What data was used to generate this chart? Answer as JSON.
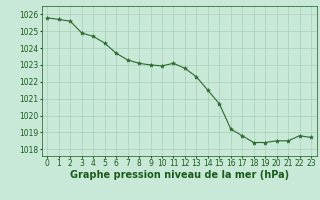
{
  "x": [
    0,
    1,
    2,
    3,
    4,
    5,
    6,
    7,
    8,
    9,
    10,
    11,
    12,
    13,
    14,
    15,
    16,
    17,
    18,
    19,
    20,
    21,
    22,
    23
  ],
  "y": [
    1025.8,
    1025.7,
    1025.6,
    1024.9,
    1024.7,
    1024.3,
    1023.7,
    1023.3,
    1023.1,
    1023.0,
    1022.95,
    1023.1,
    1022.8,
    1022.3,
    1021.5,
    1020.7,
    1019.2,
    1018.8,
    1018.4,
    1018.4,
    1018.5,
    1018.5,
    1018.8,
    1018.7
  ],
  "line_color": "#2d6a2d",
  "marker": "*",
  "marker_size": 3,
  "bg_color": "#c8e8d8",
  "grid_color": "#a0c8b0",
  "xlabel": "Graphe pression niveau de la mer (hPa)",
  "xlabel_fontsize": 7,
  "xlabel_color": "#1a5c1a",
  "ylabel_ticks": [
    1018,
    1019,
    1020,
    1021,
    1022,
    1023,
    1024,
    1025,
    1026
  ],
  "ylim": [
    1017.6,
    1026.5
  ],
  "xlim": [
    -0.5,
    23.5
  ],
  "tick_color": "#1a5c1a",
  "tick_fontsize": 5.5
}
